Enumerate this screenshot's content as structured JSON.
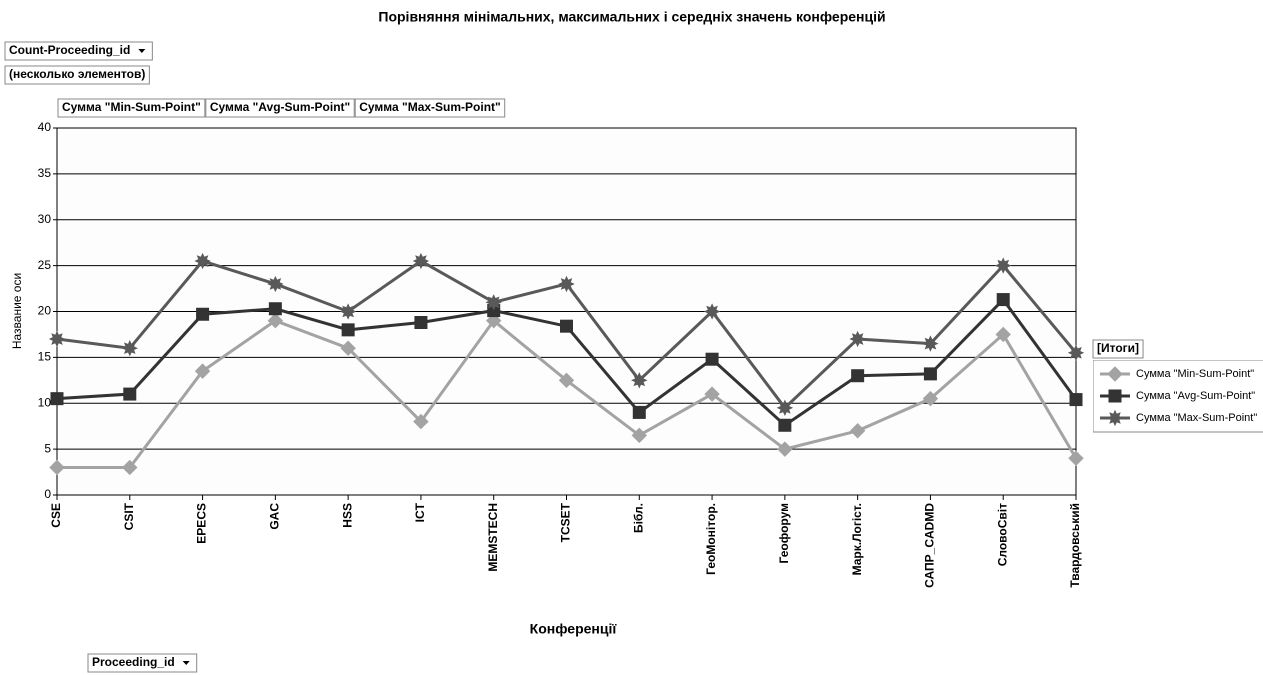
{
  "chart_data": {
    "type": "line",
    "title": "Порівняння мінімальних, максимальних і середніх значень конференцій",
    "page_filter": "Count-Proceeding_id",
    "page_filter_value": "(несколько элементов)",
    "row_field": "Proceeding_id",
    "legend_title": "[Итоги]",
    "x_label": "Конференції",
    "y_label": "Название оси",
    "categories": [
      "CSE",
      "CSIT",
      "EPECS",
      "GAC",
      "HSS",
      "ICT",
      "MEMSTECH",
      "TCSET",
      "Бібл.",
      "ГеоМонітор.",
      "Геофорум",
      "Марк.Логіст.",
      "САПР_CADMD",
      "СловоСвіт",
      "Твардовський"
    ],
    "series": [
      {
        "name": "Сумма \"Min-Sum-Point\"",
        "color": "#a3a3a3",
        "marker": "diamond",
        "values": [
          3,
          3,
          13.5,
          19,
          16,
          8,
          19,
          12.5,
          6.5,
          11,
          5,
          7,
          10.5,
          17.5,
          4
        ]
      },
      {
        "name": "Сумма \"Avg-Sum-Point\"",
        "color": "#333333",
        "marker": "square",
        "values": [
          10.5,
          11,
          19.7,
          20.3,
          18,
          18.8,
          20.1,
          18.4,
          9,
          14.8,
          7.6,
          13,
          13.2,
          21.3,
          10.4
        ]
      },
      {
        "name": "Сумма \"Max-Sum-Point\"",
        "color": "#595959",
        "marker": "star",
        "values": [
          17,
          16,
          25.5,
          23,
          20,
          25.5,
          21,
          23,
          12.5,
          20,
          9.5,
          17,
          16.5,
          25,
          15.5
        ]
      }
    ],
    "ylim": [
      0,
      40
    ],
    "yticks": [
      0,
      5,
      10,
      15,
      20,
      25,
      30,
      35,
      40
    ],
    "grid": true,
    "legend": "right"
  }
}
